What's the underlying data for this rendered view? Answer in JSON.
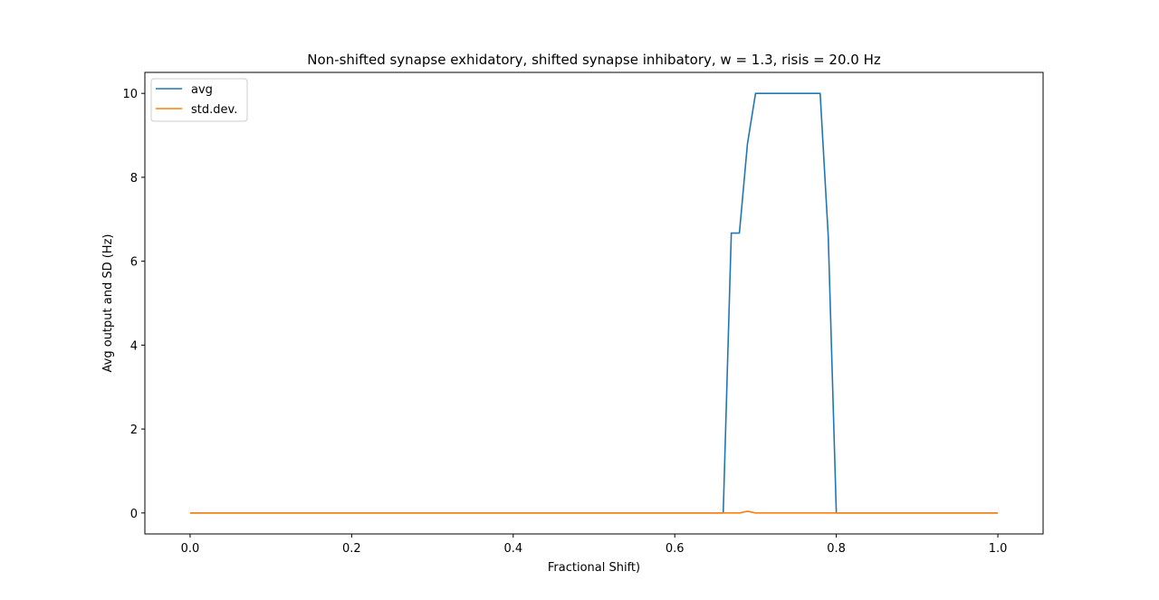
{
  "chart_data": {
    "type": "line",
    "title": "Non-shifted synapse exhidatory, shifted synapse inhibatory, w = 1.3, risis = 20.0 Hz",
    "xlabel": "Fractional Shift)",
    "ylabel": "Avg output and SD (Hz)",
    "xlim": [
      -0.056,
      1.056
    ],
    "ylim": [
      -0.5,
      10.5
    ],
    "xticks": [
      0.0,
      0.2,
      0.4,
      0.6,
      0.8,
      1.0
    ],
    "yticks": [
      0,
      2,
      4,
      6,
      8,
      10
    ],
    "xtick_labels": [
      "0.0",
      "0.2",
      "0.4",
      "0.6",
      "0.8",
      "1.0"
    ],
    "ytick_labels": [
      "0",
      "2",
      "4",
      "6",
      "8",
      "10"
    ],
    "grid": false,
    "legend_position": "top-left",
    "series": [
      {
        "name": "avg",
        "color": "#1f77b4",
        "x": [
          0.0,
          0.65,
          0.66,
          0.67,
          0.68,
          0.69,
          0.7,
          0.71,
          0.72,
          0.73,
          0.74,
          0.75,
          0.76,
          0.77,
          0.78,
          0.79,
          0.8,
          0.81,
          1.0
        ],
        "y": [
          0,
          0,
          0,
          6.67,
          6.67,
          8.8,
          10,
          10,
          10,
          10,
          10,
          10,
          10,
          10,
          10,
          6.6,
          0,
          0,
          0
        ]
      },
      {
        "name": "std.dev.",
        "color": "#ff7f0e",
        "x": [
          0.0,
          0.68,
          0.69,
          0.7,
          1.0
        ],
        "y": [
          0,
          0,
          0.04,
          0,
          0
        ]
      }
    ]
  }
}
